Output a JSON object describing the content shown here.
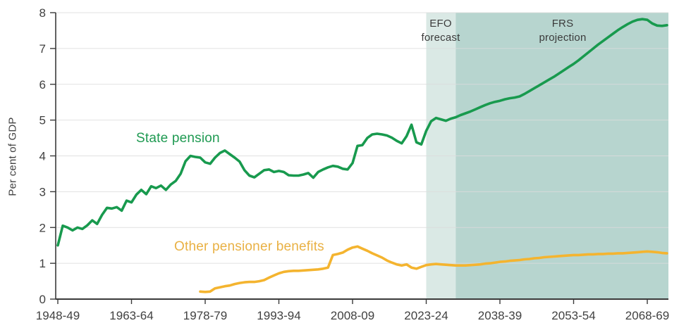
{
  "chart_data": {
    "type": "line",
    "title": "",
    "xlabel": "",
    "ylabel": "Per cent of GDP",
    "ylim": [
      0,
      8
    ],
    "y_ticks": [
      0,
      1,
      2,
      3,
      4,
      5,
      6,
      7,
      8
    ],
    "x_ticks": [
      {
        "year": 1948,
        "label": "1948-49"
      },
      {
        "year": 1963,
        "label": "1963-64"
      },
      {
        "year": 1978,
        "label": "1978-79"
      },
      {
        "year": 1993,
        "label": "1993-94"
      },
      {
        "year": 2008,
        "label": "2008-09"
      },
      {
        "year": 2023,
        "label": "2023-24"
      },
      {
        "year": 2038,
        "label": "2038-39"
      },
      {
        "year": 2053,
        "label": "2053-54"
      },
      {
        "year": 2068,
        "label": "2068-69"
      }
    ],
    "grid": true,
    "legend_position": "inline-labels",
    "colors": {
      "grid": "#dcdcdc",
      "axis": "#3a3a3a",
      "text": "#414141",
      "state_pension": "#189a4e",
      "other_benefits": "#f4b42f",
      "efo_band": "#dae9e5",
      "frs_band": "#b7d5cf"
    },
    "bands": [
      {
        "id": "efo",
        "label_line1": "EFO",
        "label_line2": "forecast",
        "from_year": 2023,
        "to_year": 2029,
        "color": "#dae9e5"
      },
      {
        "id": "frs",
        "label_line1": "FRS",
        "label_line2": "projection",
        "from_year": 2029,
        "to_year": 2072.4,
        "color": "#b7d5cf"
      }
    ],
    "series": [
      {
        "id": "state_pension",
        "name": "State pension",
        "color": "#189a4e",
        "start_year": 1948,
        "values": [
          1.5,
          2.05,
          2.0,
          1.92,
          2.0,
          1.96,
          2.06,
          2.2,
          2.1,
          2.35,
          2.55,
          2.53,
          2.57,
          2.47,
          2.75,
          2.7,
          2.92,
          3.05,
          2.93,
          3.15,
          3.1,
          3.17,
          3.05,
          3.2,
          3.3,
          3.5,
          3.85,
          4.0,
          3.97,
          3.95,
          3.82,
          3.78,
          3.95,
          4.08,
          4.15,
          4.05,
          3.95,
          3.84,
          3.6,
          3.45,
          3.4,
          3.5,
          3.6,
          3.62,
          3.55,
          3.58,
          3.55,
          3.46,
          3.45,
          3.45,
          3.48,
          3.52,
          3.39,
          3.55,
          3.62,
          3.68,
          3.72,
          3.7,
          3.64,
          3.62,
          3.8,
          4.28,
          4.3,
          4.5,
          4.6,
          4.62,
          4.6,
          4.57,
          4.51,
          4.42,
          4.35,
          4.55,
          4.87,
          4.38,
          4.32,
          4.7,
          4.97,
          5.06,
          5.02,
          4.98,
          5.04,
          5.08,
          5.14,
          5.19,
          5.24,
          5.3,
          5.36,
          5.42,
          5.47,
          5.51,
          5.54,
          5.58,
          5.61,
          5.63,
          5.66,
          5.73,
          5.81,
          5.89,
          5.97,
          6.05,
          6.13,
          6.21,
          6.3,
          6.39,
          6.48,
          6.57,
          6.67,
          6.78,
          6.89,
          7.0,
          7.11,
          7.21,
          7.31,
          7.41,
          7.51,
          7.6,
          7.68,
          7.75,
          7.8,
          7.82,
          7.8,
          7.7,
          7.64,
          7.63,
          7.65
        ]
      },
      {
        "id": "other_benefits",
        "name": "Other pensioner benefits",
        "color": "#f4b42f",
        "start_year": 1977,
        "values": [
          0.21,
          0.2,
          0.21,
          0.3,
          0.33,
          0.36,
          0.38,
          0.42,
          0.45,
          0.47,
          0.48,
          0.48,
          0.5,
          0.53,
          0.6,
          0.66,
          0.72,
          0.76,
          0.78,
          0.79,
          0.79,
          0.8,
          0.81,
          0.82,
          0.83,
          0.85,
          0.88,
          1.23,
          1.26,
          1.3,
          1.38,
          1.44,
          1.47,
          1.41,
          1.35,
          1.28,
          1.22,
          1.16,
          1.08,
          1.02,
          0.97,
          0.94,
          0.97,
          0.88,
          0.85,
          0.9,
          0.95,
          0.97,
          0.98,
          0.97,
          0.96,
          0.95,
          0.94,
          0.94,
          0.94,
          0.95,
          0.96,
          0.97,
          0.99,
          1.0,
          1.02,
          1.04,
          1.05,
          1.07,
          1.08,
          1.09,
          1.11,
          1.12,
          1.14,
          1.15,
          1.17,
          1.18,
          1.19,
          1.2,
          1.21,
          1.22,
          1.23,
          1.23,
          1.24,
          1.25,
          1.25,
          1.26,
          1.26,
          1.27,
          1.27,
          1.28,
          1.28,
          1.29,
          1.3,
          1.31,
          1.32,
          1.33,
          1.32,
          1.31,
          1.29,
          1.28
        ]
      }
    ]
  }
}
